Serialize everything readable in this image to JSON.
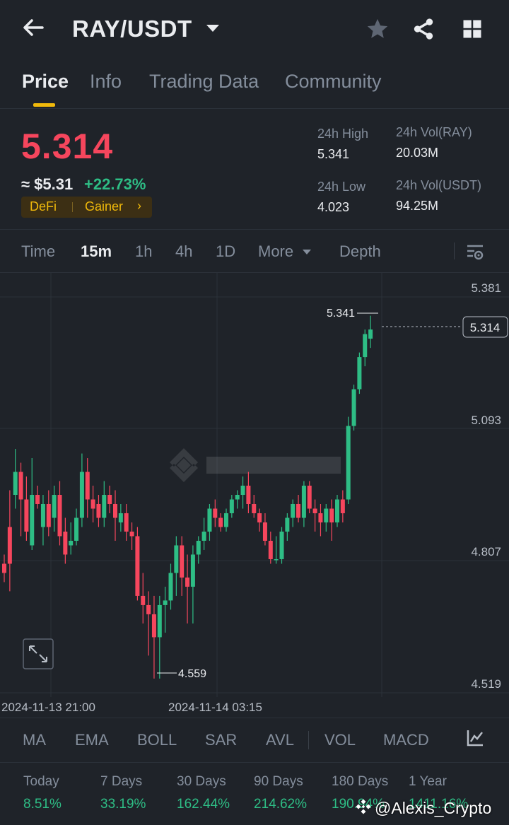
{
  "header": {
    "pair": "RAY/USDT",
    "icons": [
      "back-arrow-icon",
      "caret-down-icon",
      "star-icon",
      "share-icon",
      "grid-icon"
    ]
  },
  "tabs": [
    {
      "label": "Price",
      "active": true
    },
    {
      "label": "Info",
      "active": false
    },
    {
      "label": "Trading Data",
      "active": false
    },
    {
      "label": "Community",
      "active": false
    }
  ],
  "price": {
    "last": "5.314",
    "approx": "≈ $5.31",
    "change": "+22.73%",
    "tags": [
      "DeFi",
      "Gainer"
    ],
    "tag_arrow": "›"
  },
  "stats": {
    "high_label": "24h High",
    "high_value": "5.341",
    "low_label": "24h Low",
    "low_value": "4.023",
    "vol_base_label": "24h Vol(RAY)",
    "vol_base_value": "20.03M",
    "vol_quote_label": "24h Vol(USDT)",
    "vol_quote_value": "94.25M"
  },
  "chart_tabs": [
    {
      "label": "Time",
      "active": false
    },
    {
      "label": "15m",
      "active": true
    },
    {
      "label": "1h",
      "active": false
    },
    {
      "label": "4h",
      "active": false
    },
    {
      "label": "1D",
      "active": false
    },
    {
      "label": "More",
      "active": false
    },
    {
      "label": "Depth",
      "active": false
    }
  ],
  "chart_data": {
    "type": "candlestick",
    "y_ticks": [
      "5.381",
      "5.093",
      "4.807",
      "4.519"
    ],
    "x_ticks": [
      "2024-11-13 21:00",
      "2024-11-14 03:15"
    ],
    "ylim": [
      4.48,
      5.41
    ],
    "high_marker": "5.341",
    "low_marker": "4.559",
    "last_price_label": "5.314",
    "candles": [
      [
        4.8,
        4.82,
        4.76,
        4.78
      ],
      [
        4.88,
        4.96,
        4.74,
        4.8
      ],
      [
        4.95,
        5.05,
        4.92,
        5.0
      ],
      [
        5.0,
        5.02,
        4.86,
        4.94
      ],
      [
        4.94,
        4.99,
        4.85,
        4.87
      ],
      [
        4.84,
        5.03,
        4.83,
        4.95
      ],
      [
        4.95,
        4.97,
        4.92,
        4.93
      ],
      [
        4.88,
        4.95,
        4.84,
        4.93
      ],
      [
        4.93,
        4.96,
        4.86,
        4.88
      ],
      [
        4.9,
        4.97,
        4.87,
        4.95
      ],
      [
        4.95,
        4.98,
        4.84,
        4.86
      ],
      [
        4.87,
        4.9,
        4.8,
        4.82
      ],
      [
        4.84,
        4.89,
        4.82,
        4.85
      ],
      [
        4.85,
        4.92,
        4.84,
        4.9
      ],
      [
        4.9,
        5.04,
        4.88,
        5.0
      ],
      [
        5.0,
        5.03,
        4.9,
        4.94
      ],
      [
        4.94,
        4.97,
        4.89,
        4.92
      ],
      [
        4.93,
        4.95,
        4.88,
        4.9
      ],
      [
        4.9,
        4.98,
        4.88,
        4.95
      ],
      [
        4.95,
        4.97,
        4.91,
        4.93
      ],
      [
        4.93,
        4.96,
        4.85,
        4.9
      ],
      [
        4.89,
        4.93,
        4.87,
        4.91
      ],
      [
        4.91,
        4.93,
        4.85,
        4.87
      ],
      [
        4.87,
        4.89,
        4.83,
        4.86
      ],
      [
        4.86,
        4.88,
        4.72,
        4.73
      ],
      [
        4.73,
        4.78,
        4.67,
        4.71
      ],
      [
        4.71,
        4.74,
        4.6,
        4.69
      ],
      [
        4.69,
        4.73,
        4.55,
        4.64
      ],
      [
        4.64,
        4.73,
        4.55,
        4.71
      ],
      [
        4.71,
        4.75,
        4.65,
        4.72
      ],
      [
        4.72,
        4.8,
        4.7,
        4.78
      ],
      [
        4.78,
        4.86,
        4.73,
        4.84
      ],
      [
        4.84,
        4.86,
        4.73,
        4.77
      ],
      [
        4.77,
        4.82,
        4.67,
        4.75
      ],
      [
        4.75,
        4.84,
        4.67,
        4.82
      ],
      [
        4.82,
        4.86,
        4.8,
        4.85
      ],
      [
        4.85,
        4.9,
        4.83,
        4.87
      ],
      [
        4.87,
        4.93,
        4.85,
        4.92
      ],
      [
        4.92,
        4.94,
        4.88,
        4.9
      ],
      [
        4.9,
        4.91,
        4.87,
        4.88
      ],
      [
        4.88,
        4.92,
        4.87,
        4.91
      ],
      [
        4.91,
        4.95,
        4.9,
        4.94
      ],
      [
        4.94,
        4.96,
        4.92,
        4.95
      ],
      [
        4.95,
        4.99,
        4.92,
        4.97
      ],
      [
        4.97,
        5.0,
        4.91,
        4.93
      ],
      [
        4.93,
        4.95,
        4.9,
        4.91
      ],
      [
        4.91,
        4.92,
        4.87,
        4.89
      ],
      [
        4.89,
        4.91,
        4.84,
        4.85
      ],
      [
        4.85,
        4.87,
        4.8,
        4.81
      ],
      [
        4.81,
        4.86,
        4.8,
        4.81
      ],
      [
        4.81,
        4.88,
        4.8,
        4.87
      ],
      [
        4.87,
        4.91,
        4.85,
        4.9
      ],
      [
        4.9,
        4.94,
        4.88,
        4.93
      ],
      [
        4.93,
        4.95,
        4.89,
        4.9
      ],
      [
        4.9,
        4.98,
        4.88,
        4.97
      ],
      [
        4.97,
        4.98,
        4.91,
        4.92
      ],
      [
        4.92,
        4.94,
        4.87,
        4.91
      ],
      [
        4.91,
        4.93,
        4.86,
        4.89
      ],
      [
        4.89,
        4.93,
        4.87,
        4.92
      ],
      [
        4.92,
        4.94,
        4.85,
        4.89
      ],
      [
        4.89,
        4.95,
        4.88,
        4.94
      ],
      [
        4.94,
        4.96,
        4.89,
        4.91
      ],
      [
        4.94,
        5.12,
        4.93,
        5.1
      ],
      [
        5.1,
        5.19,
        5.09,
        5.18
      ],
      [
        5.18,
        5.26,
        5.17,
        5.25
      ],
      [
        5.25,
        5.31,
        5.23,
        5.3
      ],
      [
        5.29,
        5.34,
        5.27,
        5.31
      ]
    ],
    "up_color": "#2ebd85",
    "down_color": "#f6465d"
  },
  "indicators": [
    "MA",
    "EMA",
    "BOLL",
    "SAR",
    "AVL",
    "VOL",
    "MACD"
  ],
  "performance": [
    {
      "label": "Today",
      "value": "8.51%"
    },
    {
      "label": "7 Days",
      "value": "33.19%"
    },
    {
      "label": "30 Days",
      "value": "162.44%"
    },
    {
      "label": "90 Days",
      "value": "214.62%"
    },
    {
      "label": "180 Days",
      "value": "190.94%"
    },
    {
      "label": "1 Year",
      "value": "1411.16%"
    }
  ],
  "watermark": "@Alexis_Crypto"
}
